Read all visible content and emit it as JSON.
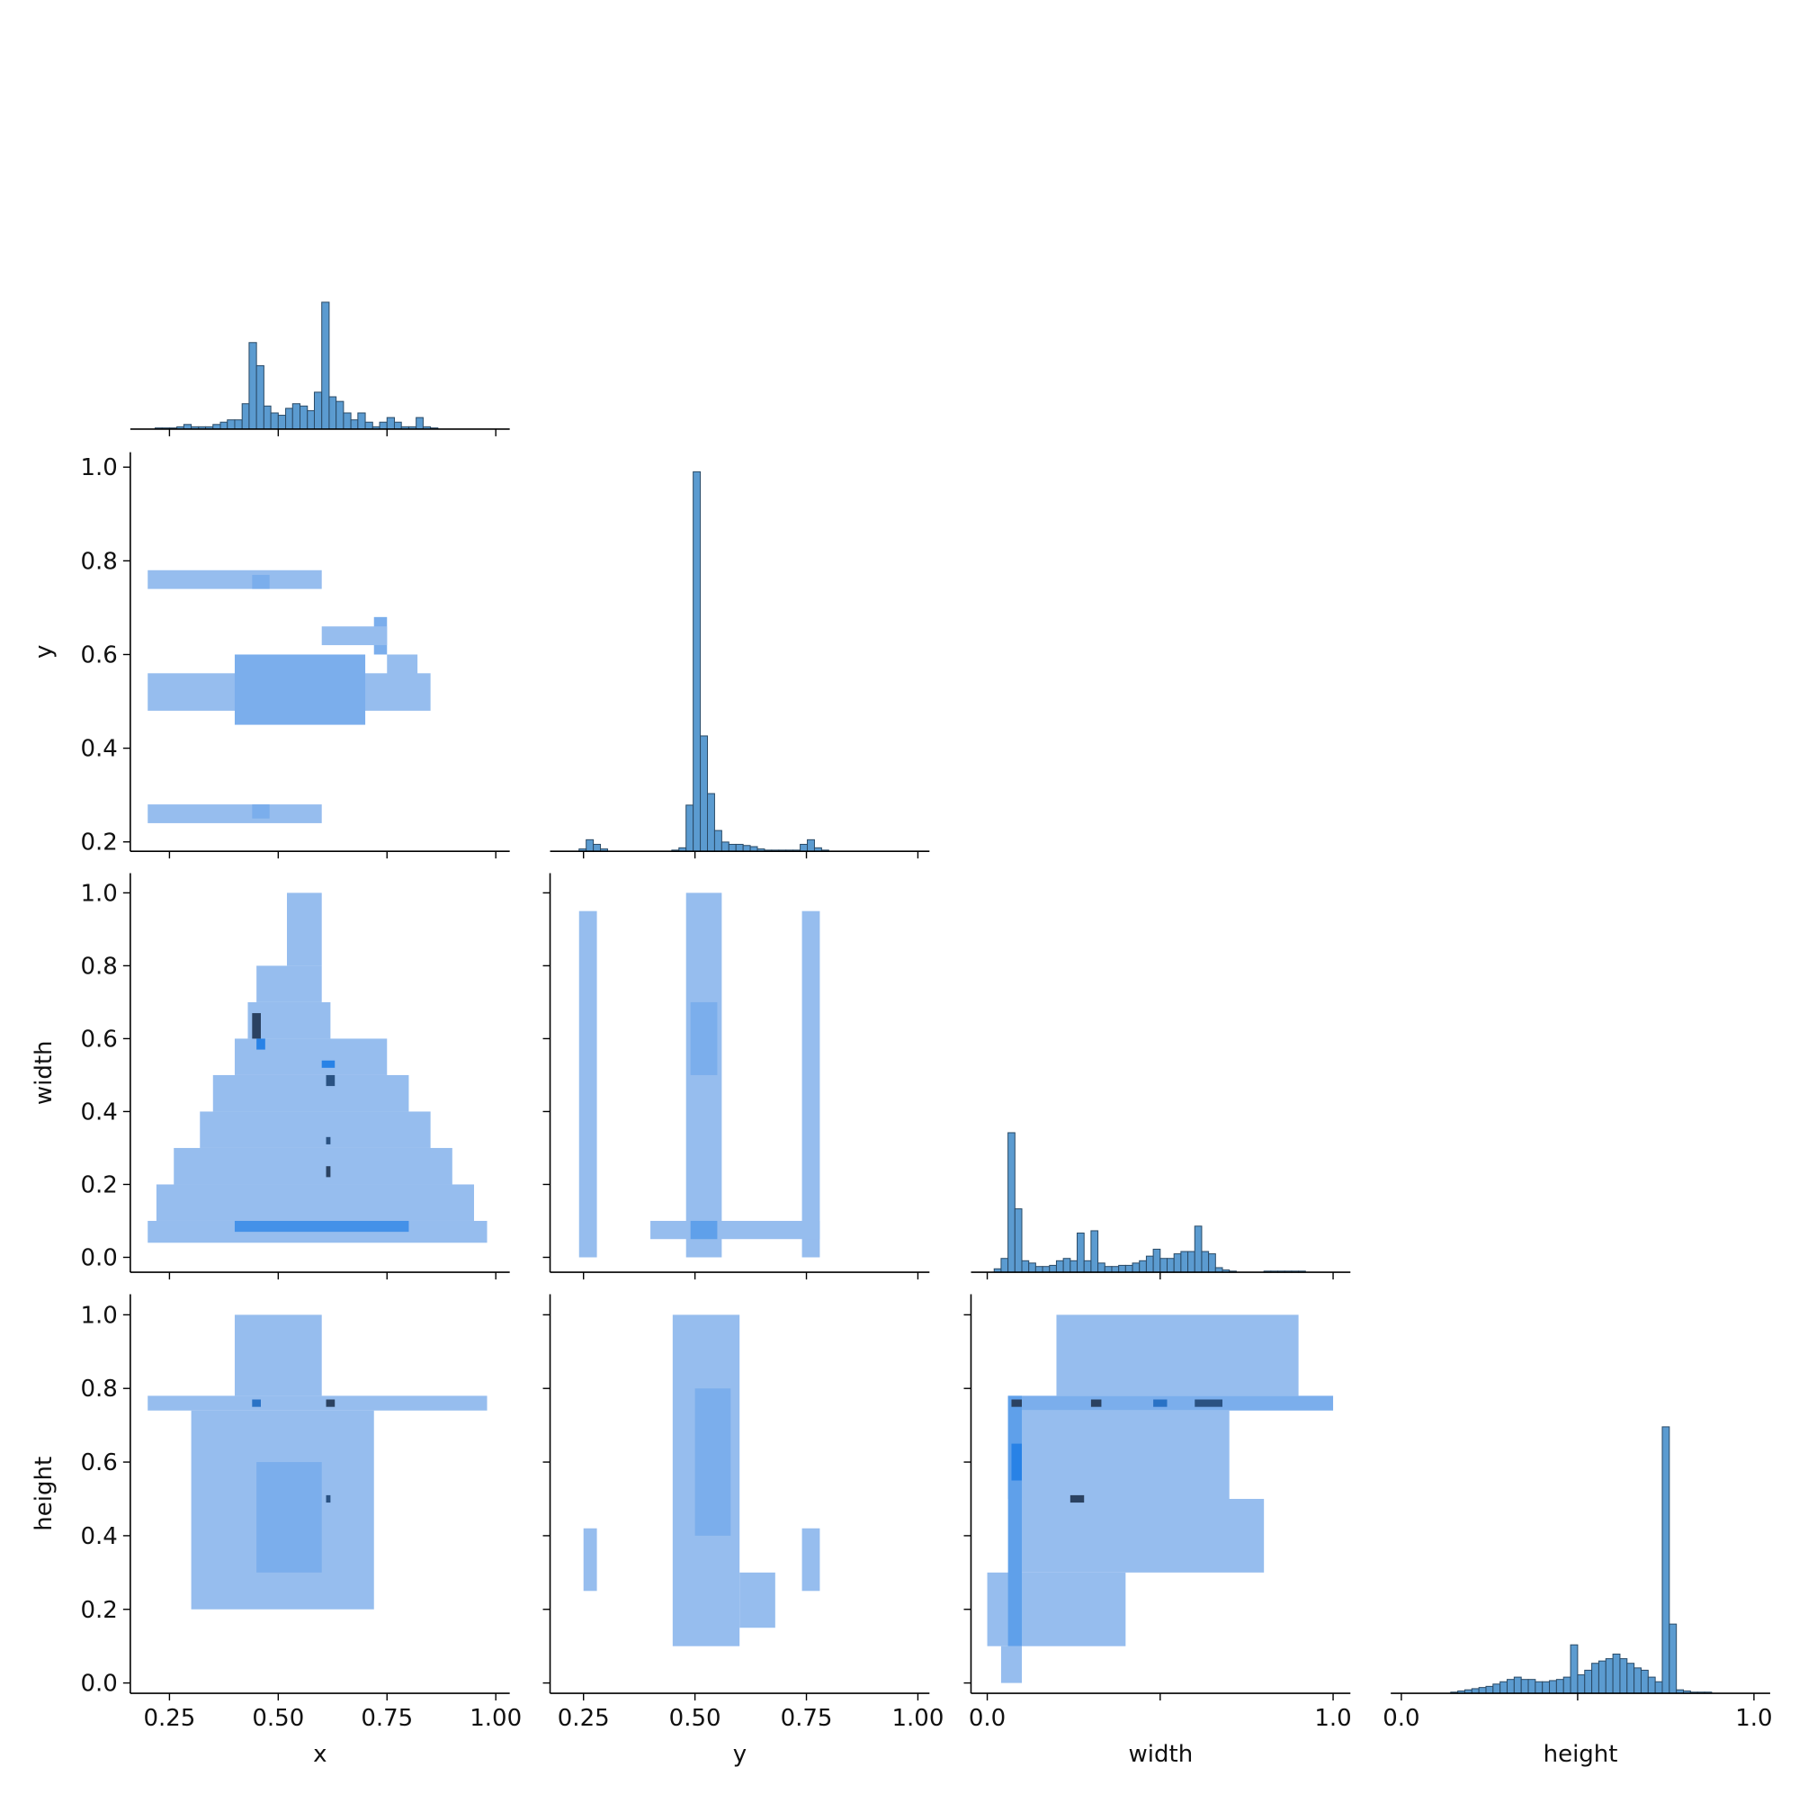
{
  "chart_data": [
    {
      "type": "histogram",
      "color": "#5b9bd0",
      "bins": [
        0.2,
        0.217,
        0.233,
        0.25,
        0.267,
        0.283,
        0.3,
        0.317,
        0.333,
        0.35,
        0.367,
        0.383,
        0.4,
        0.417,
        0.433,
        0.45,
        0.467,
        0.483,
        0.5,
        0.517,
        0.533,
        0.55,
        0.567,
        0.583,
        0.6,
        0.617,
        0.633,
        0.65,
        0.667,
        0.683,
        0.7,
        0.717,
        0.733,
        0.75,
        0.767,
        0.783,
        0.8,
        0.817,
        0.833,
        0.85,
        0.867
      ],
      "values": [
        0,
        1,
        1,
        1,
        2,
        4,
        2,
        2,
        2,
        4,
        6,
        8,
        8,
        22,
        75,
        55,
        20,
        14,
        12,
        18,
        22,
        20,
        16,
        32,
        110,
        28,
        24,
        14,
        8,
        14,
        6,
        2,
        6,
        10,
        6,
        2,
        2,
        10,
        2,
        1
      ],
      "xlim": [
        0.16,
        1.032
      ],
      "xticks": [
        0.25,
        0.5,
        0.75,
        1
      ],
      "ylim": [
        0,
        346
      ]
    },
    {
      "type": "histogram",
      "color": "#5b9bd0",
      "bins": [
        0.24,
        0.256,
        0.272,
        0.288,
        0.304,
        0.32,
        0.336,
        0.352,
        0.368,
        0.384,
        0.4,
        0.416,
        0.432,
        0.448,
        0.464,
        0.48,
        0.496,
        0.512,
        0.528,
        0.544,
        0.56,
        0.576,
        0.592,
        0.608,
        0.624,
        0.64,
        0.656,
        0.672,
        0.688,
        0.704,
        0.72,
        0.736,
        0.752,
        0.768,
        0.784,
        0.8,
        0.816
      ],
      "values": [
        2,
        10,
        6,
        2,
        0,
        0,
        0,
        0,
        0,
        0,
        0,
        0,
        0,
        1,
        3,
        40,
        329,
        100,
        50,
        18,
        8,
        6,
        6,
        5,
        4,
        2,
        1,
        1,
        1,
        1,
        1,
        6,
        10,
        3,
        1,
        0
      ],
      "xlim": [
        0.175,
        1.026
      ],
      "xticks": [
        0.25,
        0.5,
        0.75,
        1
      ],
      "ylim": [
        0,
        346
      ]
    },
    {
      "type": "histogram",
      "color": "#5b9bd0",
      "bins": [
        0.02,
        0.04,
        0.06,
        0.08,
        0.1,
        0.12,
        0.14,
        0.16,
        0.18,
        0.2,
        0.22,
        0.24,
        0.26,
        0.28,
        0.3,
        0.32,
        0.34,
        0.36,
        0.38,
        0.4,
        0.42,
        0.44,
        0.46,
        0.48,
        0.5,
        0.52,
        0.54,
        0.56,
        0.58,
        0.6,
        0.62,
        0.64,
        0.66,
        0.68,
        0.7,
        0.72,
        0.74,
        0.76,
        0.78,
        0.8,
        0.82,
        0.84,
        0.86,
        0.88,
        0.9,
        0.92
      ],
      "values": [
        3,
        12,
        121,
        55,
        10,
        8,
        5,
        5,
        6,
        10,
        12,
        10,
        34,
        10,
        36,
        8,
        5,
        5,
        6,
        6,
        8,
        10,
        14,
        20,
        12,
        12,
        16,
        18,
        18,
        40,
        18,
        16,
        4,
        2,
        1,
        0,
        0,
        0,
        0,
        1,
        1,
        1,
        1,
        1,
        1
      ],
      "xlim": [
        -0.047,
        1.05
      ],
      "xticks": [
        0,
        0.5,
        1
      ],
      "ylim": [
        0,
        346
      ]
    },
    {
      "type": "histogram",
      "color": "#5b9bd0",
      "xlabel": "height",
      "bins": [
        0.14,
        0.16,
        0.18,
        0.2,
        0.22,
        0.24,
        0.26,
        0.28,
        0.3,
        0.32,
        0.34,
        0.36,
        0.38,
        0.4,
        0.42,
        0.44,
        0.46,
        0.48,
        0.5,
        0.52,
        0.54,
        0.56,
        0.58,
        0.6,
        0.62,
        0.64,
        0.66,
        0.68,
        0.7,
        0.72,
        0.74,
        0.76,
        0.78,
        0.8,
        0.82,
        0.84,
        0.86,
        0.88
      ],
      "values": [
        1,
        2,
        3,
        4,
        5,
        6,
        8,
        10,
        12,
        14,
        12,
        12,
        10,
        10,
        11,
        12,
        14,
        42,
        16,
        20,
        26,
        28,
        30,
        34,
        30,
        26,
        22,
        20,
        14,
        10,
        231,
        60,
        3,
        2,
        1,
        1,
        1
      ],
      "xlim": [
        -0.03,
        1.046
      ],
      "xticks": [
        {
          "value": 0,
          "label": "0.0"
        },
        0.5,
        {
          "value": 1,
          "label": "1.0"
        }
      ],
      "ylim": [
        0,
        346
      ]
    },
    {
      "type": "hist2d",
      "ylabel": "y",
      "vmax": 10,
      "xlim": [
        0.16,
        1.032
      ],
      "xticks": [
        0.25,
        0.5,
        0.75,
        1
      ],
      "ylim": [
        0.18,
        1.032
      ],
      "yticks": [
        0.2,
        0.4,
        0.6,
        0.8,
        {
          "value": 1,
          "label": "1.0"
        }
      ],
      "cells": [
        {
          "x": [
            0.2,
            0.85
          ],
          "y": [
            0.48,
            0.56
          ],
          "count": 1
        },
        {
          "x": [
            0.4,
            0.7
          ],
          "y": [
            0.45,
            0.6
          ],
          "count": 2
        },
        {
          "x": [
            0.2,
            0.6
          ],
          "y": [
            0.74,
            0.78
          ],
          "count": 1
        },
        {
          "x": [
            0.44,
            0.48
          ],
          "y": [
            0.74,
            0.77
          ],
          "count": 2
        },
        {
          "x": [
            0.2,
            0.6
          ],
          "y": [
            0.24,
            0.28
          ],
          "count": 1
        },
        {
          "x": [
            0.44,
            0.48
          ],
          "y": [
            0.25,
            0.28
          ],
          "count": 2
        },
        {
          "x": [
            0.72,
            0.75
          ],
          "y": [
            0.6,
            0.68
          ],
          "count": 2
        },
        {
          "x": [
            0.75,
            0.82
          ],
          "y": [
            0.5,
            0.6
          ],
          "count": 1
        },
        {
          "x": [
            0.6,
            0.75
          ],
          "y": [
            0.62,
            0.66
          ],
          "count": 1
        }
      ]
    },
    {
      "type": "hist2d",
      "ylabel": "width",
      "vmax": 10,
      "xlim": [
        0.16,
        1.032
      ],
      "xticks": [
        0.25,
        0.5,
        0.75,
        1
      ],
      "ylim": [
        -0.041,
        1.054
      ],
      "yticks": [
        {
          "value": 0,
          "label": "0.0"
        },
        0.2,
        0.4,
        0.6,
        0.8,
        {
          "value": 1,
          "label": "1.0"
        }
      ],
      "cells": [
        {
          "x": [
            0.2,
            0.98
          ],
          "y": [
            0.04,
            0.1
          ],
          "count": 1
        },
        {
          "x": [
            0.22,
            0.95
          ],
          "y": [
            0.1,
            0.2
          ],
          "count": 1
        },
        {
          "x": [
            0.26,
            0.9
          ],
          "y": [
            0.2,
            0.3
          ],
          "count": 1
        },
        {
          "x": [
            0.32,
            0.85
          ],
          "y": [
            0.3,
            0.4
          ],
          "count": 1
        },
        {
          "x": [
            0.35,
            0.8
          ],
          "y": [
            0.4,
            0.5
          ],
          "count": 1
        },
        {
          "x": [
            0.4,
            0.75
          ],
          "y": [
            0.5,
            0.6
          ],
          "count": 1
        },
        {
          "x": [
            0.43,
            0.62
          ],
          "y": [
            0.6,
            0.7
          ],
          "count": 1
        },
        {
          "x": [
            0.45,
            0.6
          ],
          "y": [
            0.7,
            0.8
          ],
          "count": 1
        },
        {
          "x": [
            0.52,
            0.6
          ],
          "y": [
            0.8,
            1.0
          ],
          "count": 1
        },
        {
          "x": [
            0.4,
            0.8
          ],
          "y": [
            0.07,
            0.1
          ],
          "count": 4
        },
        {
          "x": [
            0.44,
            0.46
          ],
          "y": [
            0.6,
            0.67
          ],
          "count": 9
        },
        {
          "x": [
            0.45,
            0.47
          ],
          "y": [
            0.57,
            0.6
          ],
          "count": 5
        },
        {
          "x": [
            0.61,
            0.63
          ],
          "y": [
            0.47,
            0.5
          ],
          "count": 8
        },
        {
          "x": [
            0.61,
            0.62
          ],
          "y": [
            0.22,
            0.25
          ],
          "count": 9
        },
        {
          "x": [
            0.61,
            0.62
          ],
          "y": [
            0.31,
            0.33
          ],
          "count": 8
        },
        {
          "x": [
            0.6,
            0.63
          ],
          "y": [
            0.52,
            0.54
          ],
          "count": 5
        }
      ]
    },
    {
      "type": "hist2d",
      "vmax": 10,
      "xlim": [
        0.175,
        1.026
      ],
      "xticks": [
        0.25,
        0.5,
        0.75,
        1
      ],
      "ylim": [
        -0.041,
        1.054
      ],
      "yticks": [
        0,
        0.2,
        0.4,
        0.6,
        0.8,
        1
      ],
      "cells": [
        {
          "x": [
            0.24,
            0.28
          ],
          "y": [
            0,
            0.95
          ],
          "count": 1
        },
        {
          "x": [
            0.48,
            0.56
          ],
          "y": [
            0,
            1.0
          ],
          "count": 1
        },
        {
          "x": [
            0.74,
            0.78
          ],
          "y": [
            0,
            0.95
          ],
          "count": 1
        },
        {
          "x": [
            0.4,
            0.78
          ],
          "y": [
            0.05,
            0.1
          ],
          "count": 1
        },
        {
          "x": [
            0.49,
            0.55
          ],
          "y": [
            0.05,
            0.1
          ],
          "count": 3
        },
        {
          "x": [
            0.49,
            0.55
          ],
          "y": [
            0.5,
            0.7
          ],
          "count": 2
        }
      ]
    },
    {
      "type": "hist2d",
      "ylabel": "height",
      "xlabel": "x",
      "vmax": 10,
      "xlim": [
        0.16,
        1.032
      ],
      "xticks": [
        {
          "value": 0.25,
          "label": "0.25"
        },
        {
          "value": 0.5,
          "label": "0.50"
        },
        {
          "value": 0.75,
          "label": "0.75"
        },
        {
          "value": 1,
          "label": "1.00"
        }
      ],
      "ylim": [
        -0.028,
        1.056
      ],
      "yticks": [
        {
          "value": 0,
          "label": "0.0"
        },
        0.2,
        0.4,
        0.6,
        0.8,
        {
          "value": 1,
          "label": "1.0"
        }
      ],
      "cells": [
        {
          "x": [
            0.2,
            0.98
          ],
          "y": [
            0.74,
            0.78
          ],
          "count": 1
        },
        {
          "x": [
            0.3,
            0.72
          ],
          "y": [
            0.2,
            0.74
          ],
          "count": 1
        },
        {
          "x": [
            0.4,
            0.6
          ],
          "y": [
            0.78,
            1.0
          ],
          "count": 1
        },
        {
          "x": [
            0.45,
            0.6
          ],
          "y": [
            0.3,
            0.6
          ],
          "count": 2
        },
        {
          "x": [
            0.44,
            0.46
          ],
          "y": [
            0.75,
            0.77
          ],
          "count": 6
        },
        {
          "x": [
            0.61,
            0.63
          ],
          "y": [
            0.75,
            0.77
          ],
          "count": 9
        },
        {
          "x": [
            0.61,
            0.62
          ],
          "y": [
            0.49,
            0.51
          ],
          "count": 8
        }
      ]
    },
    {
      "type": "hist2d",
      "xlabel": "y",
      "vmax": 10,
      "xlim": [
        0.175,
        1.026
      ],
      "xticks": [
        {
          "value": 0.25,
          "label": "0.25"
        },
        {
          "value": 0.5,
          "label": "0.50"
        },
        {
          "value": 0.75,
          "label": "0.75"
        },
        {
          "value": 1,
          "label": "1.00"
        }
      ],
      "ylim": [
        -0.028,
        1.056
      ],
      "yticks": [
        0,
        0.2,
        0.4,
        0.6,
        0.8,
        1
      ],
      "cells": [
        {
          "x": [
            0.45,
            0.6
          ],
          "y": [
            0.1,
            1.0
          ],
          "count": 1
        },
        {
          "x": [
            0.5,
            0.58
          ],
          "y": [
            0.4,
            0.8
          ],
          "count": 2
        },
        {
          "x": [
            0.6,
            0.68
          ],
          "y": [
            0.15,
            0.3
          ],
          "count": 1
        },
        {
          "x": [
            0.25,
            0.28
          ],
          "y": [
            0.25,
            0.42
          ],
          "count": 1
        },
        {
          "x": [
            0.74,
            0.78
          ],
          "y": [
            0.25,
            0.42
          ],
          "count": 1
        }
      ]
    },
    {
      "type": "hist2d",
      "xlabel": "width",
      "vmax": 10,
      "xlim": [
        -0.047,
        1.05
      ],
      "xticks": [
        {
          "value": 0,
          "label": "0.0"
        },
        0.5,
        {
          "value": 1,
          "label": "1.0"
        }
      ],
      "ylim": [
        -0.028,
        1.056
      ],
      "yticks": [
        0,
        0.2,
        0.4,
        0.6,
        0.8,
        1
      ],
      "cells": [
        {
          "x": [
            0.06,
            1.0
          ],
          "y": [
            0.74,
            0.78
          ],
          "count": 2
        },
        {
          "x": [
            0.06,
            0.7
          ],
          "y": [
            0.5,
            0.74
          ],
          "count": 1
        },
        {
          "x": [
            0.2,
            0.9
          ],
          "y": [
            0.78,
            1.0
          ],
          "count": 1
        },
        {
          "x": [
            0.1,
            0.8
          ],
          "y": [
            0.3,
            0.5
          ],
          "count": 1
        },
        {
          "x": [
            0,
            0.4
          ],
          "y": [
            0.1,
            0.3
          ],
          "count": 1
        },
        {
          "x": [
            0.04,
            0.1
          ],
          "y": [
            0,
            0.1
          ],
          "count": 1
        },
        {
          "x": [
            0.06,
            0.1
          ],
          "y": [
            0.1,
            0.78
          ],
          "count": 3
        },
        {
          "x": [
            0.07,
            0.1
          ],
          "y": [
            0.55,
            0.65
          ],
          "count": 5
        },
        {
          "x": [
            0.07,
            0.1
          ],
          "y": [
            0.75,
            0.77
          ],
          "count": 9
        },
        {
          "x": [
            0.3,
            0.33
          ],
          "y": [
            0.75,
            0.77
          ],
          "count": 9
        },
        {
          "x": [
            0.48,
            0.52
          ],
          "y": [
            0.75,
            0.77
          ],
          "count": 6
        },
        {
          "x": [
            0.6,
            0.68
          ],
          "y": [
            0.75,
            0.77
          ],
          "count": 8
        },
        {
          "x": [
            0.24,
            0.28
          ],
          "y": [
            0.49,
            0.51
          ],
          "count": 9
        }
      ]
    }
  ]
}
